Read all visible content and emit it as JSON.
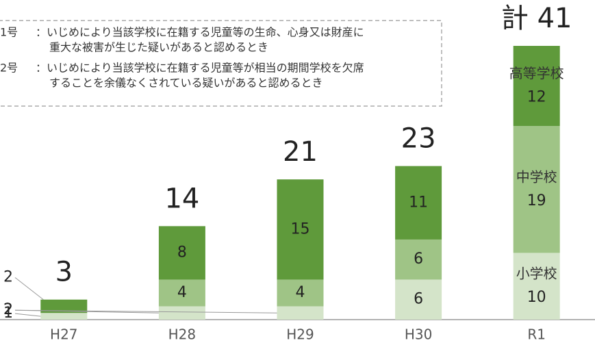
{
  "chart_data": {
    "type": "stacked_bar",
    "categories": [
      "H27",
      "H28",
      "H29",
      "H30",
      "R1"
    ],
    "series": [
      {
        "name": "小学校",
        "color": "#d4e4c9",
        "values": [
          1,
          2,
          2,
          6,
          10
        ]
      },
      {
        "name": "中学校",
        "color": "#9fc486",
        "values": [
          0,
          4,
          4,
          6,
          19
        ]
      },
      {
        "name": "高等学校",
        "color": "#5f9a3b",
        "values": [
          2,
          8,
          15,
          11,
          12
        ]
      }
    ],
    "totals": {
      "values": [
        3,
        14,
        21,
        23,
        41
      ],
      "value_labels": [
        "3",
        "14",
        "21",
        "23",
        "計 41"
      ]
    },
    "ylim": [
      0,
      45
    ],
    "notes": [
      {
        "label": "1号",
        "lines": [
          "：いじめにより当該学校に在籍する児童等の生命、心身又は財産に",
          "重大な被害が生じた疑いがあると認めるとき"
        ]
      },
      {
        "label": "2号",
        "lines": [
          "：いじめにより当該学校に在籍する児童等が相当の期間学校を欠席",
          "することを余儀なくされている疑いがあると認めるとき"
        ]
      }
    ]
  }
}
